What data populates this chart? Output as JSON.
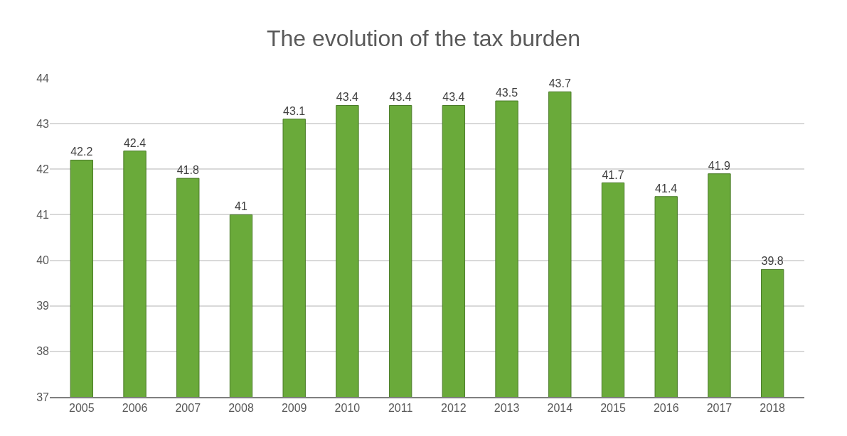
{
  "chart_data": {
    "type": "bar",
    "title": "The evolution of the tax burden",
    "categories": [
      "2005",
      "2006",
      "2007",
      "2008",
      "2009",
      "2010",
      "2011",
      "2012",
      "2013",
      "2014",
      "2015",
      "2016",
      "2017",
      "2018"
    ],
    "values": [
      42.2,
      42.4,
      41.8,
      41,
      43.1,
      43.4,
      43.4,
      43.4,
      43.5,
      43.7,
      41.7,
      41.4,
      41.9,
      39.8
    ],
    "color": "#6aaa3a",
    "ylim": [
      37,
      44
    ],
    "yticks": [
      37,
      38,
      39,
      40,
      41,
      42,
      43,
      44
    ],
    "grid": "y",
    "data_labels": true
  }
}
